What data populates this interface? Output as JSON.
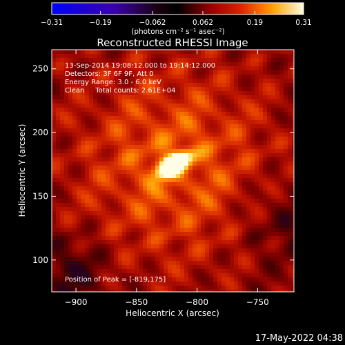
{
  "chart_data": {
    "type": "heatmap",
    "title": "Reconstructed RHESSI Image",
    "xlabel": "Heliocentric X (arcsec)",
    "ylabel": "Heliocentric Y (arcsec)",
    "xlim": [
      -920,
      -720
    ],
    "ylim": [
      75,
      265
    ],
    "xticks": [
      -900,
      -850,
      -800,
      -750
    ],
    "yticks": [
      100,
      150,
      200,
      250
    ],
    "colorbar": {
      "ticks": [
        -0.31,
        -0.19,
        -0.062,
        0.062,
        0.19,
        0.31
      ],
      "range": [
        -0.31,
        0.31
      ],
      "unit_label": "(photons cm⁻² s⁻¹ asec⁻²)"
    },
    "annotations": [
      "13-Sep-2014 19:08:12.000 to 19:14:12.000",
      "Detectors: 3F 6F 9F, Att 0",
      "Energy Range: 3.0 - 6.0 keV",
      "Clean     Total counts: 2.61E+04"
    ],
    "peak_label": "Position of Peak = [-819,175]",
    "peak": {
      "x": -819,
      "y": 175,
      "value": 0.31
    },
    "grid": false,
    "legend": "none"
  },
  "footer": {
    "timestamp": "17-May-2022 04:38"
  }
}
